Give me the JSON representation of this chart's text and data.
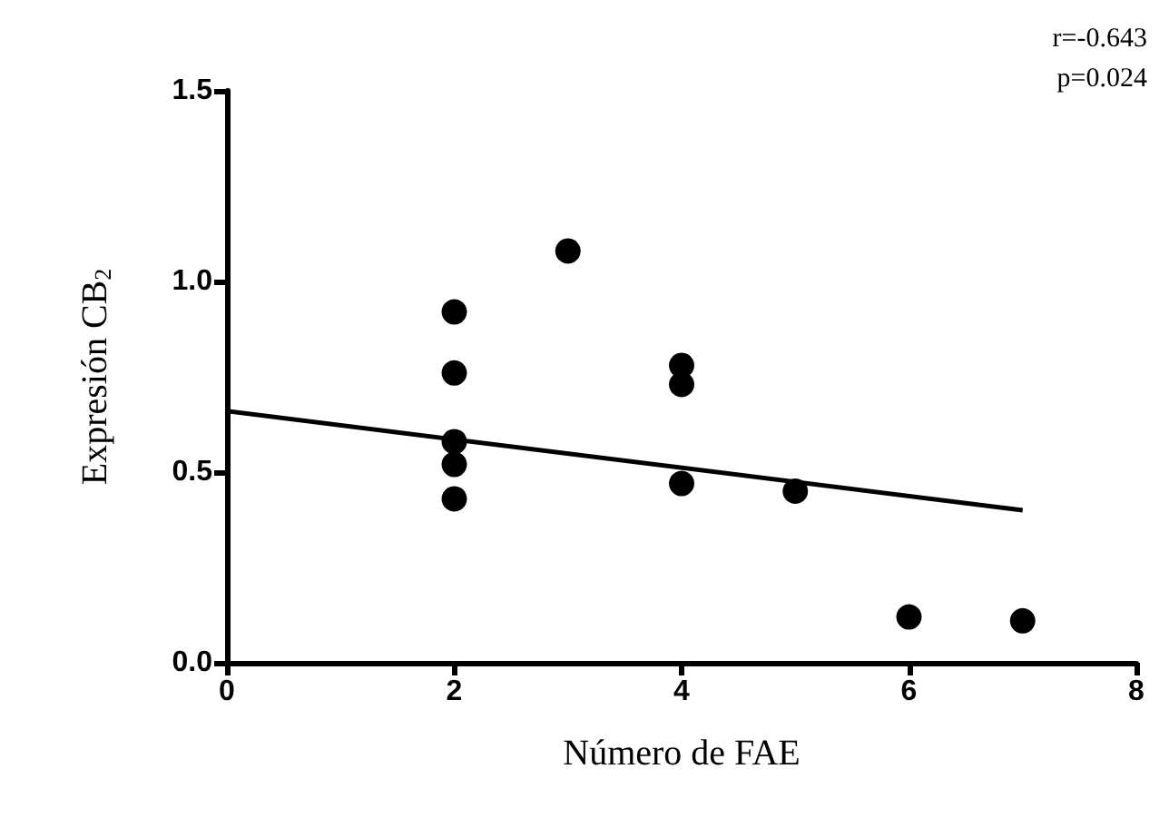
{
  "chart_data": {
    "type": "scatter",
    "xlabel": "Número de FAE",
    "ylabel": "Expresión CB$_{2}$",
    "marker": "circle",
    "xlim": [
      0,
      8
    ],
    "xticks": [
      0,
      2,
      4,
      6,
      8
    ],
    "ylim": [
      0,
      1.5
    ],
    "yticks": [
      {
        "value": 0,
        "label": "0.0"
      },
      0.5,
      {
        "value": 1,
        "label": "1.0"
      },
      1.5
    ],
    "annotations": [
      "r=-0.643",
      "p=0.024"
    ],
    "series": [
      {
        "color": "#000000",
        "x": [
          2,
          2,
          2,
          2,
          2,
          3,
          4,
          4,
          4,
          5,
          6,
          7
        ],
        "values": [
          0.92,
          0.76,
          0.58,
          0.52,
          0.43,
          1.08,
          0.78,
          0.73,
          0.47,
          0.45,
          0.12,
          0.11
        ]
      },
      {
        "type": "line",
        "color": "#000000",
        "marker": "none",
        "x": [
          0,
          7
        ],
        "values": [
          0.66,
          0.4
        ]
      }
    ]
  }
}
